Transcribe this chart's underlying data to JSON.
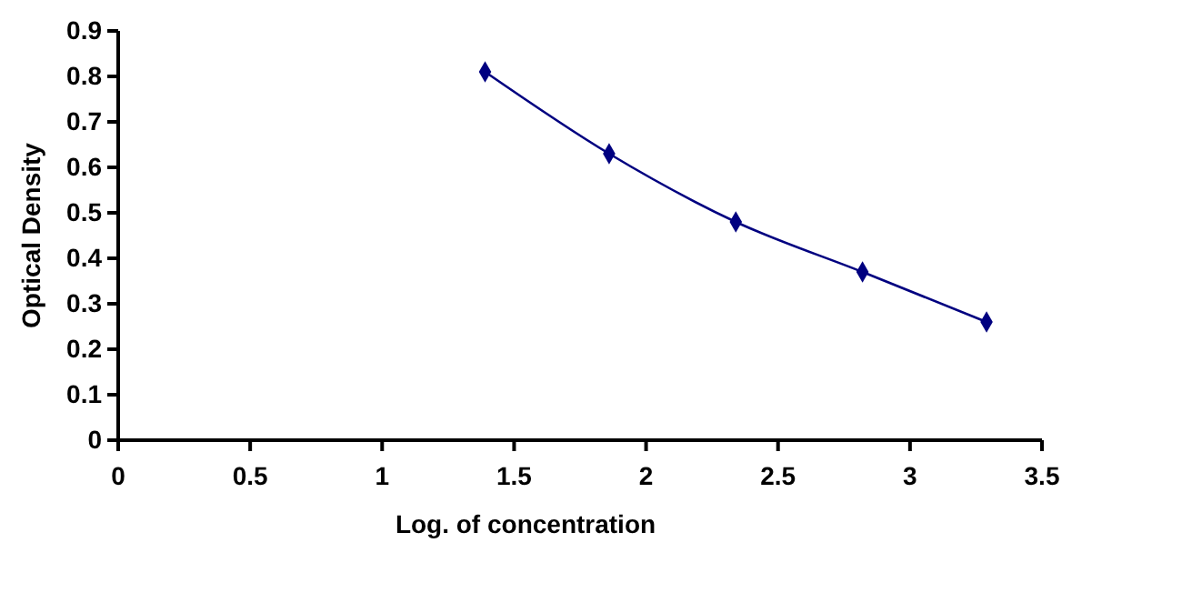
{
  "chart_data": {
    "type": "line",
    "xlabel": "Log. of concentration",
    "ylabel": "Optical Density",
    "x": [
      1.39,
      1.86,
      2.34,
      2.82,
      3.29
    ],
    "series": [
      {
        "color": "#000080",
        "values": [
          0.81,
          0.63,
          0.48,
          0.37,
          0.26
        ]
      }
    ],
    "xlim": [
      0,
      3.5
    ],
    "xticks": [
      0,
      0.5,
      1,
      1.5,
      2,
      2.5,
      3,
      3.5
    ],
    "ylim": [
      0,
      0.9
    ],
    "yticks": [
      0,
      0.1,
      0.2,
      0.3,
      0.4,
      0.5,
      0.6,
      0.7,
      0.8,
      0.9
    ],
    "grid": false,
    "marker": "diamond",
    "line_style": "solid"
  }
}
